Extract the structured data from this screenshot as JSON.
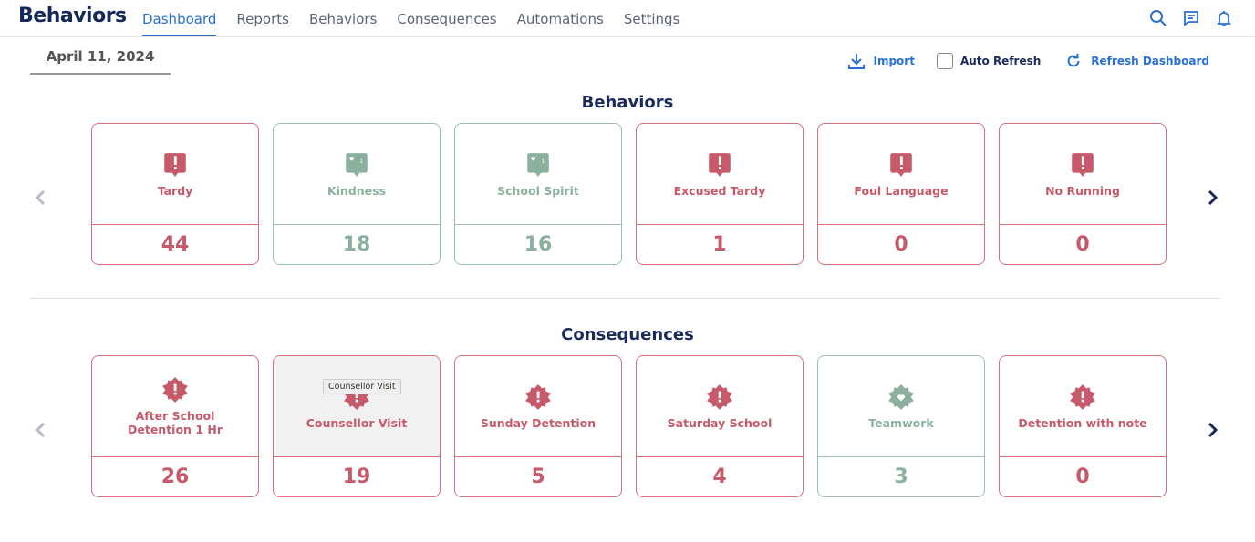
{
  "app": {
    "title": "Behaviors"
  },
  "nav": [
    {
      "label": "Dashboard",
      "active": true
    },
    {
      "label": "Reports"
    },
    {
      "label": "Behaviors"
    },
    {
      "label": "Consequences"
    },
    {
      "label": "Automations"
    },
    {
      "label": "Settings"
    }
  ],
  "toolbar": {
    "date": "April 11, 2024",
    "import": "Import",
    "auto_refresh": "Auto Refresh",
    "auto_refresh_checked": false,
    "refresh": "Refresh Dashboard"
  },
  "behaviors": {
    "title": "Behaviors",
    "items": [
      {
        "label": "Tardy",
        "count": "44",
        "type": "negative"
      },
      {
        "label": "Kindness",
        "count": "18",
        "type": "positive"
      },
      {
        "label": "School Spirit",
        "count": "16",
        "type": "positive"
      },
      {
        "label": "Excused Tardy",
        "count": "1",
        "type": "negative"
      },
      {
        "label": "Foul Language",
        "count": "0",
        "type": "negative"
      },
      {
        "label": "No Running",
        "count": "0",
        "type": "negative"
      }
    ]
  },
  "consequences": {
    "title": "Consequences",
    "tooltip": "Counsellor Visit",
    "items": [
      {
        "label": "After School Detention 1 Hr",
        "count": "26",
        "type": "negative"
      },
      {
        "label": "Counsellor Visit",
        "count": "19",
        "type": "negative"
      },
      {
        "label": "Sunday Detention",
        "count": "5",
        "type": "negative"
      },
      {
        "label": "Saturday School",
        "count": "4",
        "type": "negative"
      },
      {
        "label": "Teamwork",
        "count": "3",
        "type": "positive"
      },
      {
        "label": "Detention with note",
        "count": "0",
        "type": "negative"
      }
    ]
  },
  "colors": {
    "negative": "#c65a6a",
    "positive": "#8cb09e",
    "accent": "#2a6fd6",
    "navy": "#1b2a5c"
  }
}
